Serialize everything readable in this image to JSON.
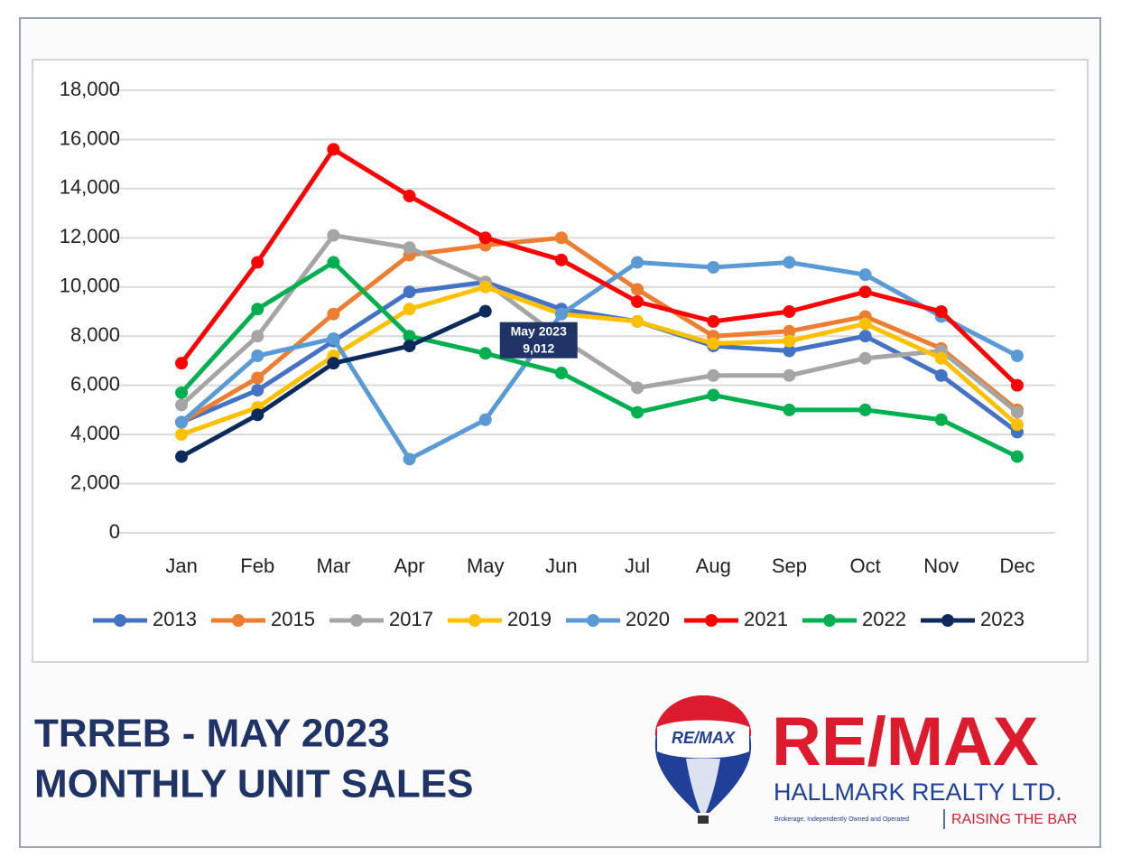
{
  "chart_data": {
    "type": "line",
    "categories": [
      "Jan",
      "Feb",
      "Mar",
      "Apr",
      "May",
      "Jun",
      "Jul",
      "Aug",
      "Sep",
      "Oct",
      "Nov",
      "Dec"
    ],
    "series": [
      {
        "name": "2013",
        "color": "#4472c4",
        "values": [
          4500,
          5800,
          7800,
          9800,
          10200,
          9100,
          8600,
          7600,
          7400,
          8000,
          6400,
          4100
        ]
      },
      {
        "name": "2015",
        "color": "#ed7d31",
        "values": [
          4500,
          6300,
          8900,
          11300,
          11700,
          12000,
          9900,
          8000,
          8200,
          8800,
          7500,
          5000
        ]
      },
      {
        "name": "2017",
        "color": "#a5a5a5",
        "values": [
          5200,
          8000,
          12100,
          11600,
          10200,
          7900,
          5900,
          6400,
          6400,
          7100,
          7400,
          4900
        ]
      },
      {
        "name": "2019",
        "color": "#ffc000",
        "values": [
          4000,
          5100,
          7200,
          9100,
          10000,
          8900,
          8600,
          7700,
          7800,
          8500,
          7100,
          4400
        ]
      },
      {
        "name": "2020",
        "color": "#5b9bd5",
        "values": [
          4500,
          7200,
          7900,
          3000,
          4600,
          8900,
          11000,
          10800,
          11000,
          10500,
          8800,
          7200
        ]
      },
      {
        "name": "2021",
        "color": "#ff0000",
        "values": [
          6900,
          11000,
          15600,
          13700,
          12000,
          11100,
          9400,
          8600,
          9000,
          9800,
          9000,
          6000
        ]
      },
      {
        "name": "2022",
        "color": "#00b050",
        "values": [
          5700,
          9100,
          11000,
          8000,
          7300,
          6500,
          4900,
          5600,
          5000,
          5000,
          4600,
          3100
        ]
      },
      {
        "name": "2023",
        "color": "#0d2a5c",
        "values": [
          3100,
          4800,
          6900,
          7600,
          9012,
          null,
          null,
          null,
          null,
          null,
          null,
          null
        ]
      }
    ],
    "ylim": [
      0,
      18000
    ],
    "yticks": [
      0,
      {
        "value": 2000,
        "label": "2,000"
      },
      {
        "value": 4000,
        "label": "4,000"
      },
      {
        "value": 6000,
        "label": "6,000"
      },
      {
        "value": 8000,
        "label": "8,000"
      },
      {
        "value": 10000,
        "label": "10,000"
      },
      {
        "value": 12000,
        "label": "12,000"
      },
      {
        "value": 14000,
        "label": "14,000"
      },
      {
        "value": 16000,
        "label": "16,000"
      },
      {
        "value": 18000,
        "label": "18,000"
      }
    ],
    "grid": true,
    "legend": "bottom",
    "annotation": {
      "lines": [
        "May 2023",
        "9,012"
      ]
    }
  },
  "footer": {
    "title_lines": [
      "TRREB - MAY 2023",
      "MONTHLY UNIT SALES"
    ],
    "balloon_text": "RE/MAX",
    "brand": "RE/MAX",
    "company": "HALLMARK REALTY LTD.",
    "disclaimer": "Brokerage, Independently Owned and Operated",
    "slogan": "RAISING THE BAR"
  }
}
